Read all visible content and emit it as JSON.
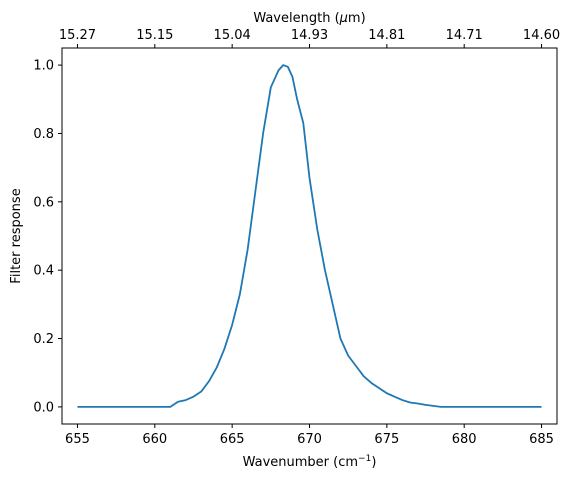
{
  "chart_data": {
    "type": "line",
    "xlabel": "Wavenumber (cm",
    "xlabel_sup": "−1",
    "xlabel_tail": ")",
    "ylabel": "Filter response",
    "top_xlabel_pre": "Wavelength (",
    "top_xlabel_mu": "μ",
    "top_xlabel_post": "m)",
    "xlim": [
      654.0,
      686.0
    ],
    "ylim": [
      -0.05,
      1.05
    ],
    "xticks": [
      655,
      660,
      665,
      670,
      675,
      680,
      685
    ],
    "xtick_labels": [
      "655",
      "660",
      "665",
      "670",
      "675",
      "680",
      "685"
    ],
    "yticks": [
      0.0,
      0.2,
      0.4,
      0.6,
      0.8,
      1.0
    ],
    "ytick_labels": [
      "0.0",
      "0.2",
      "0.4",
      "0.6",
      "0.8",
      "1.0"
    ],
    "top_xticks": [
      655,
      660,
      665,
      670,
      675,
      680,
      685
    ],
    "top_xtick_labels": [
      "15.27",
      "15.15",
      "15.04",
      "14.93",
      "14.81",
      "14.71",
      "14.60"
    ],
    "line_color": "#1f77b4",
    "grid": false,
    "series": [
      {
        "x": [
          655,
          657,
          659,
          661,
          661.5,
          662,
          662.5,
          663,
          663.5,
          664,
          664.5,
          665,
          665.5,
          666,
          666.5,
          667,
          667.5,
          668,
          668.3,
          668.6,
          668.9,
          669.2,
          669.6,
          670,
          670.5,
          671,
          671.5,
          672,
          672.5,
          673,
          673.5,
          674,
          674.5,
          675,
          675.5,
          676,
          676.5,
          677,
          677.5,
          678,
          678.5,
          679,
          681,
          683,
          685
        ],
        "y": [
          0.0,
          0.0,
          0.0,
          0.0,
          0.015,
          0.02,
          0.03,
          0.045,
          0.075,
          0.115,
          0.17,
          0.24,
          0.33,
          0.46,
          0.63,
          0.8,
          0.935,
          0.985,
          1.0,
          0.995,
          0.965,
          0.9,
          0.83,
          0.67,
          0.52,
          0.4,
          0.3,
          0.2,
          0.15,
          0.12,
          0.09,
          0.07,
          0.055,
          0.04,
          0.03,
          0.02,
          0.013,
          0.01,
          0.006,
          0.003,
          0.0,
          0.0,
          0.0,
          0.0,
          0.0
        ]
      }
    ]
  }
}
